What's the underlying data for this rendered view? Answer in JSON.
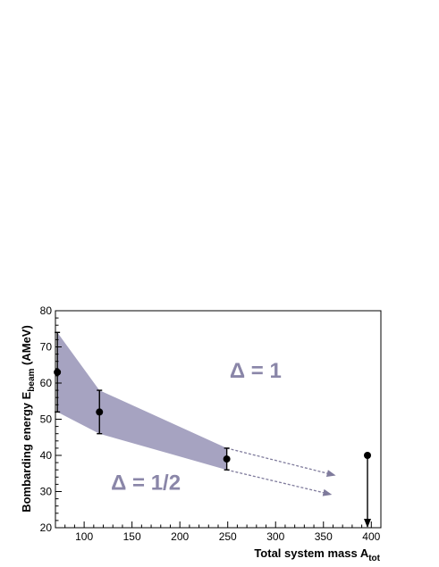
{
  "chart_data": {
    "type": "scatter",
    "title": "",
    "xlabel": "Total system mass A",
    "xlabel_sub": "tot",
    "ylabel": "Bombarding energy E",
    "ylabel_sub": "beam",
    "ylabel_unit": " (AMeV)",
    "xlim": [
      70,
      410
    ],
    "ylim": [
      20,
      80
    ],
    "x_ticks": [
      100,
      150,
      200,
      250,
      300,
      350,
      400
    ],
    "y_ticks": [
      20,
      30,
      40,
      50,
      60,
      70,
      80
    ],
    "grid": false,
    "series": [
      {
        "points": [
          {
            "x": 72,
            "y": 63,
            "err_low": 52,
            "err_high": 74
          },
          {
            "x": 116,
            "y": 52,
            "err_low": 46,
            "err_high": 58
          },
          {
            "x": 249,
            "y": 39,
            "err_low": 36,
            "err_high": 42
          },
          {
            "x": 396,
            "y": 40,
            "err_low": 20,
            "err_high": 40
          }
        ]
      }
    ],
    "band": {
      "upper": [
        {
          "x": 72,
          "y": 74
        },
        {
          "x": 116,
          "y": 58
        },
        {
          "x": 249,
          "y": 42
        }
      ],
      "lower": [
        {
          "x": 72,
          "y": 52
        },
        {
          "x": 116,
          "y": 46
        },
        {
          "x": 249,
          "y": 36
        }
      ],
      "color": "#a6a3c1"
    },
    "arrows": [
      {
        "from": {
          "x": 249,
          "y": 42
        },
        "to": {
          "x": 362,
          "y": 34.5
        }
      },
      {
        "from": {
          "x": 249,
          "y": 36
        },
        "to": {
          "x": 358,
          "y": 29.2
        }
      }
    ],
    "annotations": [
      {
        "text": "Δ = 1",
        "x": 252,
        "y": 61.5
      },
      {
        "text": "Δ = 1/2",
        "x": 128,
        "y": 30.5
      }
    ],
    "colors": {
      "band": "#a6a3c1",
      "arrow": "#7f7b9c",
      "label": "#8a86a8",
      "marker": "#000000"
    }
  }
}
